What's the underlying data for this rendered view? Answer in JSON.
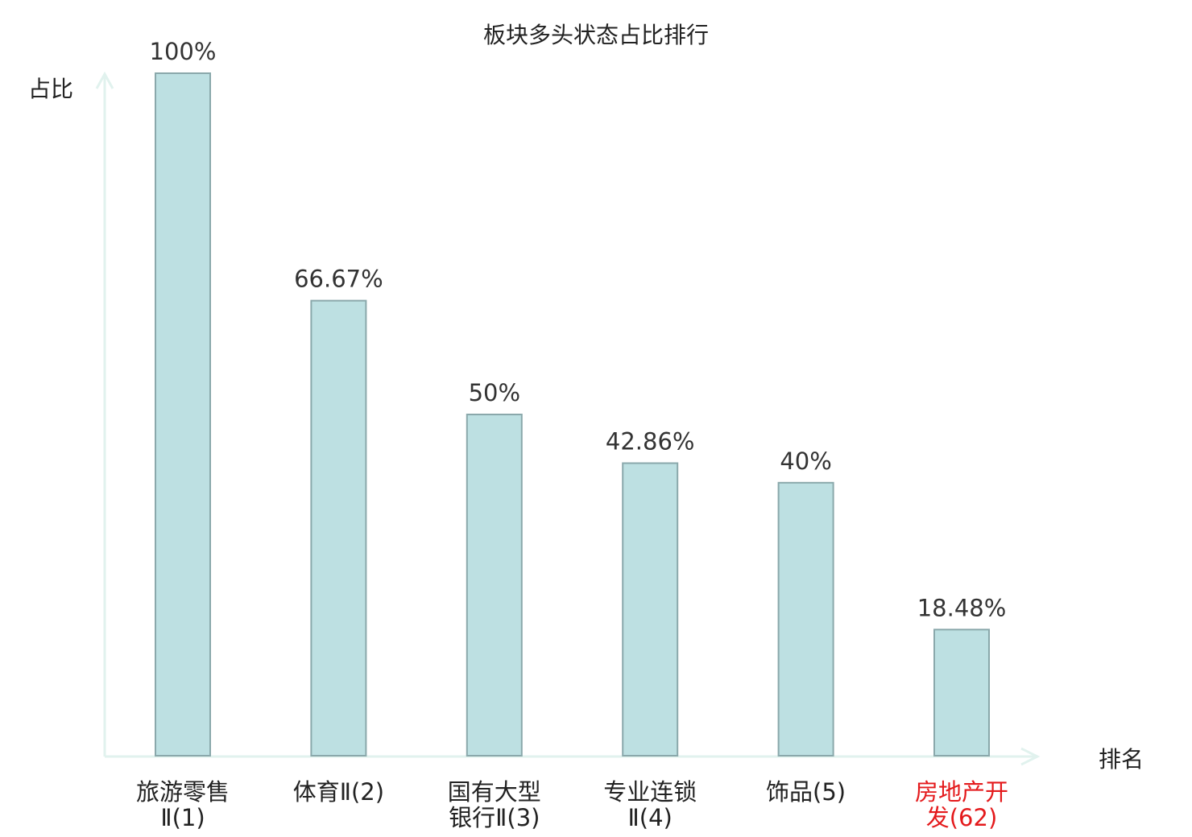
{
  "chart_data": {
    "type": "bar",
    "title": "板块多头状态占比排行",
    "ylabel": "占比",
    "xlabel": "排名",
    "ylim": [
      0,
      100
    ],
    "grid": false,
    "legend": "none",
    "categories": [
      {
        "name_lines": [
          "旅游零售"
        ],
        "rank_line": "Ⅱ(1)",
        "highlight": false
      },
      {
        "name_lines": [],
        "rank_line": "体育Ⅱ(2)",
        "highlight": false
      },
      {
        "name_lines": [
          "国有大型"
        ],
        "rank_line": "银行Ⅱ(3)",
        "highlight": false
      },
      {
        "name_lines": [
          "专业连锁"
        ],
        "rank_line": "Ⅱ(4)",
        "highlight": false
      },
      {
        "name_lines": [],
        "rank_line": "饰品(5)",
        "highlight": false
      },
      {
        "name_lines": [
          "房地产开"
        ],
        "rank_line": "发(62)",
        "highlight": true
      }
    ],
    "values": [
      100,
      66.67,
      50,
      42.86,
      40,
      18.48
    ],
    "value_labels": [
      "100%",
      "66.67%",
      "50%",
      "42.86%",
      "40%",
      "18.48%"
    ]
  },
  "colors": {
    "bar_fill": "#bde0e2",
    "bar_stroke": "#8aa8ab",
    "axis": "#e1f2ee",
    "text": "#222222",
    "highlight": "#e41a1c"
  }
}
